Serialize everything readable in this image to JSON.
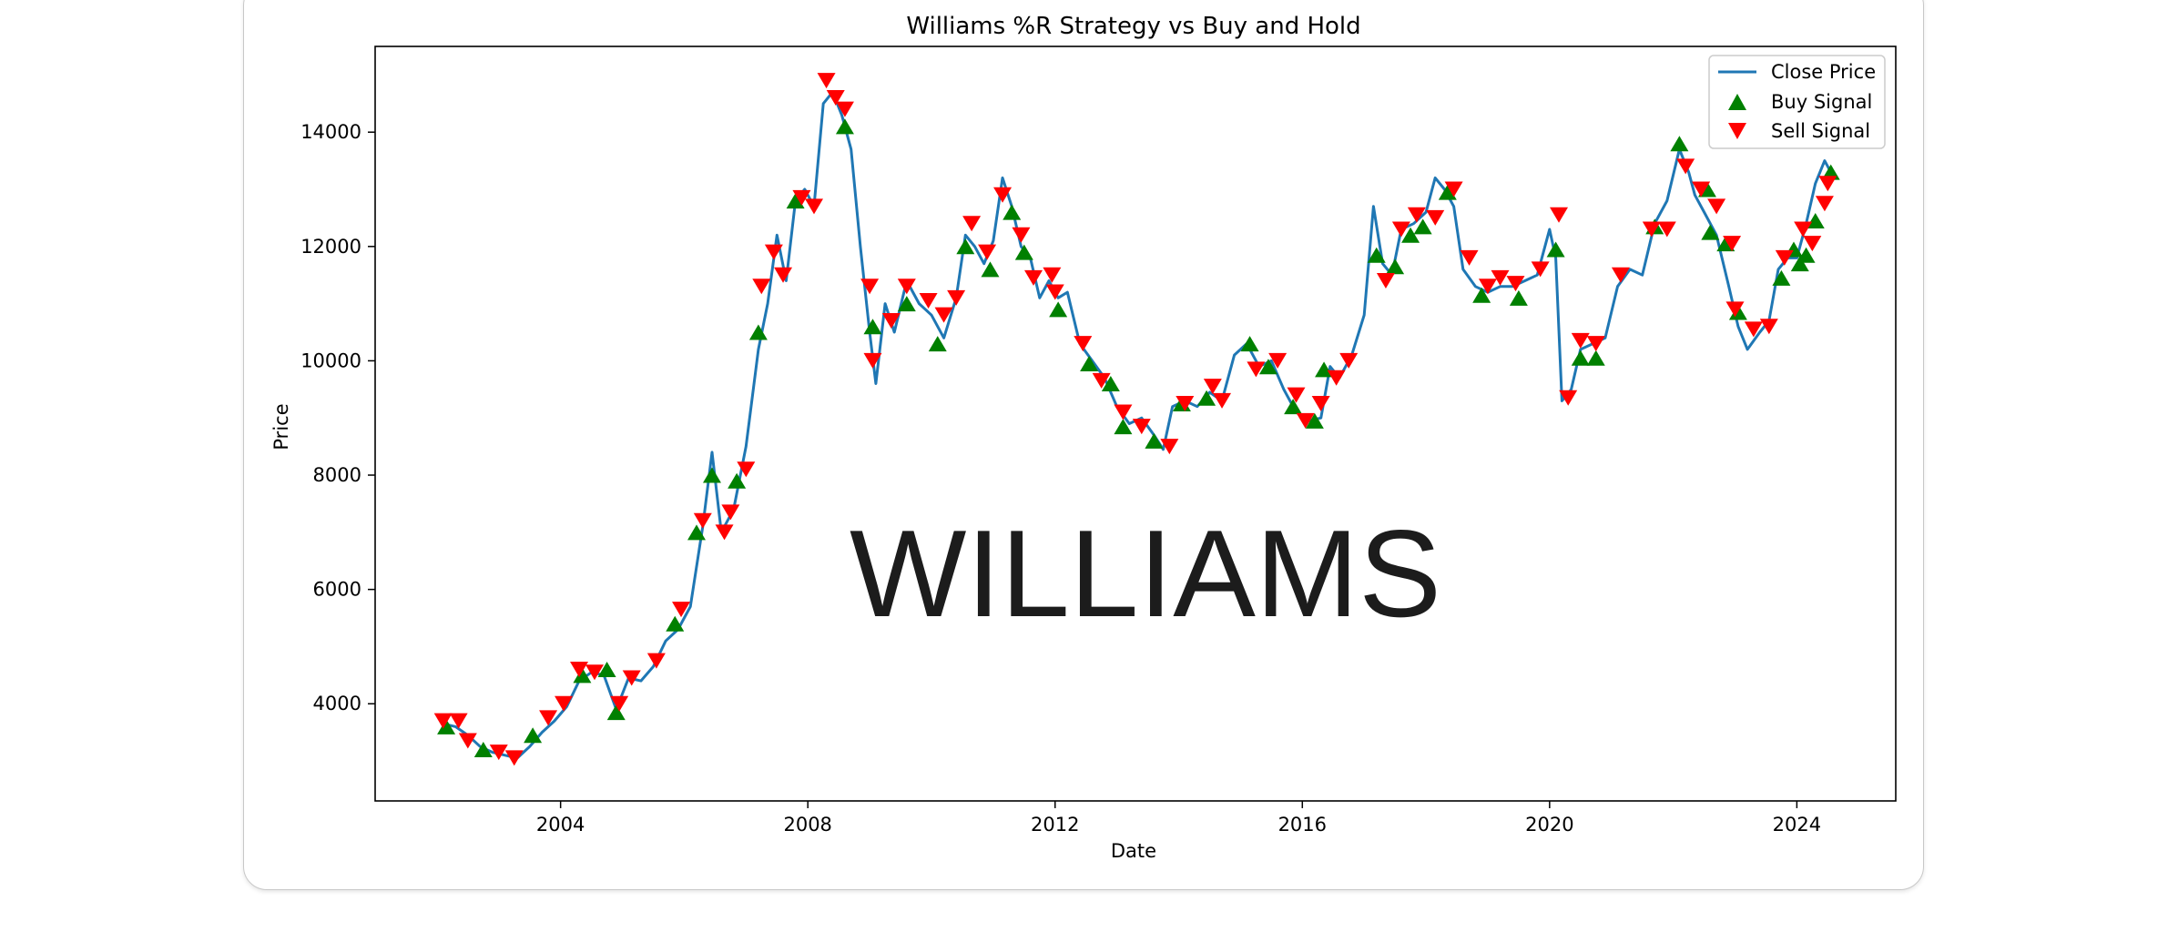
{
  "chart_data": {
    "type": "line",
    "title": "Williams %R Strategy vs Buy and Hold",
    "xlabel": "Date",
    "ylabel": "Price",
    "xlim": [
      2001.0,
      2025.6
    ],
    "ylim": [
      2300,
      15500
    ],
    "xticks": [
      2004,
      2008,
      2012,
      2016,
      2020,
      2024
    ],
    "yticks": [
      4000,
      6000,
      8000,
      10000,
      12000,
      14000
    ],
    "grid": false,
    "legend_position": "top-right",
    "watermark": "WILLIAMS",
    "series": [
      {
        "name": "Close Price",
        "color": "#1f77b4",
        "points": [
          [
            2002.1,
            3650
          ],
          [
            2002.3,
            3600
          ],
          [
            2002.5,
            3450
          ],
          [
            2002.7,
            3250
          ],
          [
            2002.9,
            3150
          ],
          [
            2003.1,
            3100
          ],
          [
            2003.3,
            3050
          ],
          [
            2003.5,
            3250
          ],
          [
            2003.7,
            3500
          ],
          [
            2003.9,
            3700
          ],
          [
            2004.1,
            3950
          ],
          [
            2004.3,
            4400
          ],
          [
            2004.5,
            4550
          ],
          [
            2004.7,
            4500
          ],
          [
            2004.9,
            3900
          ],
          [
            2005.1,
            4450
          ],
          [
            2005.3,
            4400
          ],
          [
            2005.5,
            4650
          ],
          [
            2005.7,
            5100
          ],
          [
            2005.9,
            5300
          ],
          [
            2006.1,
            5700
          ],
          [
            2006.3,
            7100
          ],
          [
            2006.45,
            8400
          ],
          [
            2006.6,
            7000
          ],
          [
            2006.8,
            7400
          ],
          [
            2007.0,
            8500
          ],
          [
            2007.2,
            10200
          ],
          [
            2007.35,
            11000
          ],
          [
            2007.5,
            12200
          ],
          [
            2007.65,
            11400
          ],
          [
            2007.8,
            12800
          ],
          [
            2007.95,
            13000
          ],
          [
            2008.1,
            12700
          ],
          [
            2008.25,
            14500
          ],
          [
            2008.4,
            14700
          ],
          [
            2008.55,
            14300
          ],
          [
            2008.7,
            13700
          ],
          [
            2008.85,
            12000
          ],
          [
            2009.0,
            10500
          ],
          [
            2009.1,
            9600
          ],
          [
            2009.25,
            11000
          ],
          [
            2009.4,
            10500
          ],
          [
            2009.6,
            11400
          ],
          [
            2009.8,
            11000
          ],
          [
            2010.0,
            10800
          ],
          [
            2010.2,
            10400
          ],
          [
            2010.4,
            11100
          ],
          [
            2010.55,
            12200
          ],
          [
            2010.7,
            12000
          ],
          [
            2010.85,
            11700
          ],
          [
            2011.0,
            12100
          ],
          [
            2011.15,
            13200
          ],
          [
            2011.3,
            12700
          ],
          [
            2011.45,
            12000
          ],
          [
            2011.6,
            11800
          ],
          [
            2011.75,
            11100
          ],
          [
            2011.9,
            11400
          ],
          [
            2012.05,
            11100
          ],
          [
            2012.2,
            11200
          ],
          [
            2012.4,
            10300
          ],
          [
            2012.6,
            10000
          ],
          [
            2012.8,
            9700
          ],
          [
            2013.0,
            9200
          ],
          [
            2013.2,
            8900
          ],
          [
            2013.4,
            9000
          ],
          [
            2013.6,
            8700
          ],
          [
            2013.75,
            8450
          ],
          [
            2013.9,
            9200
          ],
          [
            2014.1,
            9300
          ],
          [
            2014.3,
            9200
          ],
          [
            2014.5,
            9450
          ],
          [
            2014.7,
            9300
          ],
          [
            2014.9,
            10100
          ],
          [
            2015.1,
            10300
          ],
          [
            2015.3,
            9900
          ],
          [
            2015.5,
            10000
          ],
          [
            2015.7,
            9500
          ],
          [
            2015.9,
            9100
          ],
          [
            2016.1,
            8950
          ],
          [
            2016.3,
            9000
          ],
          [
            2016.45,
            9900
          ],
          [
            2016.6,
            9700
          ],
          [
            2016.8,
            10100
          ],
          [
            2017.0,
            10800
          ],
          [
            2017.15,
            12700
          ],
          [
            2017.3,
            11700
          ],
          [
            2017.45,
            11500
          ],
          [
            2017.6,
            12300
          ],
          [
            2017.8,
            12400
          ],
          [
            2018.0,
            12600
          ],
          [
            2018.15,
            13200
          ],
          [
            2018.3,
            13000
          ],
          [
            2018.45,
            12700
          ],
          [
            2018.6,
            11600
          ],
          [
            2018.8,
            11300
          ],
          [
            2019.0,
            11200
          ],
          [
            2019.2,
            11300
          ],
          [
            2019.4,
            11300
          ],
          [
            2019.6,
            11400
          ],
          [
            2019.8,
            11500
          ],
          [
            2020.0,
            12300
          ],
          [
            2020.1,
            11800
          ],
          [
            2020.2,
            9300
          ],
          [
            2020.35,
            9500
          ],
          [
            2020.5,
            10200
          ],
          [
            2020.7,
            10300
          ],
          [
            2020.9,
            10400
          ],
          [
            2021.1,
            11300
          ],
          [
            2021.3,
            11600
          ],
          [
            2021.5,
            11500
          ],
          [
            2021.7,
            12400
          ],
          [
            2021.9,
            12800
          ],
          [
            2022.1,
            13700
          ],
          [
            2022.25,
            13300
          ],
          [
            2022.35,
            12900
          ],
          [
            2022.5,
            12600
          ],
          [
            2022.7,
            12200
          ],
          [
            2022.9,
            11300
          ],
          [
            2023.05,
            10600
          ],
          [
            2023.2,
            10200
          ],
          [
            2023.4,
            10500
          ],
          [
            2023.55,
            10700
          ],
          [
            2023.7,
            11600
          ],
          [
            2023.85,
            11800
          ],
          [
            2024.0,
            11800
          ],
          [
            2024.15,
            12400
          ],
          [
            2024.3,
            13100
          ],
          [
            2024.45,
            13500
          ],
          [
            2024.55,
            13300
          ]
        ]
      },
      {
        "name": "Buy Signal",
        "color": "#008000",
        "marker": "triangle-up",
        "points": [
          [
            2002.15,
            3600
          ],
          [
            2002.75,
            3200
          ],
          [
            2003.55,
            3450
          ],
          [
            2004.35,
            4500
          ],
          [
            2004.75,
            4600
          ],
          [
            2004.9,
            3850
          ],
          [
            2005.85,
            5400
          ],
          [
            2006.2,
            7000
          ],
          [
            2006.45,
            8000
          ],
          [
            2006.85,
            7900
          ],
          [
            2007.2,
            10500
          ],
          [
            2007.8,
            12800
          ],
          [
            2008.6,
            14100
          ],
          [
            2009.05,
            10600
          ],
          [
            2009.6,
            11000
          ],
          [
            2010.1,
            10300
          ],
          [
            2010.55,
            12000
          ],
          [
            2010.95,
            11600
          ],
          [
            2011.3,
            12600
          ],
          [
            2011.5,
            11900
          ],
          [
            2012.05,
            10900
          ],
          [
            2012.55,
            9950
          ],
          [
            2012.9,
            9600
          ],
          [
            2013.1,
            8850
          ],
          [
            2013.6,
            8600
          ],
          [
            2014.05,
            9250
          ],
          [
            2014.45,
            9350
          ],
          [
            2015.15,
            10300
          ],
          [
            2015.45,
            9900
          ],
          [
            2015.85,
            9200
          ],
          [
            2016.2,
            8950
          ],
          [
            2016.35,
            9850
          ],
          [
            2017.2,
            11850
          ],
          [
            2017.5,
            11650
          ],
          [
            2017.75,
            12200
          ],
          [
            2017.95,
            12350
          ],
          [
            2018.35,
            12950
          ],
          [
            2018.9,
            11150
          ],
          [
            2019.5,
            11100
          ],
          [
            2020.1,
            11950
          ],
          [
            2020.5,
            10050
          ],
          [
            2020.75,
            10050
          ],
          [
            2021.7,
            12350
          ],
          [
            2022.1,
            13800
          ],
          [
            2022.55,
            13000
          ],
          [
            2022.6,
            12250
          ],
          [
            2022.85,
            12050
          ],
          [
            2023.05,
            10850
          ],
          [
            2023.75,
            11450
          ],
          [
            2023.95,
            11950
          ],
          [
            2024.05,
            11700
          ],
          [
            2024.15,
            11850
          ],
          [
            2024.3,
            12450
          ],
          [
            2024.55,
            13300
          ]
        ]
      },
      {
        "name": "Sell Signal",
        "color": "#ff0000",
        "marker": "triangle-down",
        "points": [
          [
            2002.1,
            3700
          ],
          [
            2002.35,
            3700
          ],
          [
            2002.5,
            3350
          ],
          [
            2003.0,
            3150
          ],
          [
            2003.25,
            3050
          ],
          [
            2003.8,
            3750
          ],
          [
            2004.05,
            4000
          ],
          [
            2004.3,
            4600
          ],
          [
            2004.55,
            4550
          ],
          [
            2004.95,
            4000
          ],
          [
            2005.15,
            4450
          ],
          [
            2005.55,
            4750
          ],
          [
            2005.95,
            5650
          ],
          [
            2006.3,
            7200
          ],
          [
            2006.65,
            7000
          ],
          [
            2006.75,
            7350
          ],
          [
            2007.0,
            8100
          ],
          [
            2007.25,
            11300
          ],
          [
            2007.45,
            11900
          ],
          [
            2007.6,
            11500
          ],
          [
            2007.9,
            12850
          ],
          [
            2008.1,
            12700
          ],
          [
            2008.3,
            14900
          ],
          [
            2008.45,
            14600
          ],
          [
            2008.6,
            14400
          ],
          [
            2009.0,
            11300
          ],
          [
            2009.05,
            10000
          ],
          [
            2009.35,
            10700
          ],
          [
            2009.6,
            11300
          ],
          [
            2009.95,
            11050
          ],
          [
            2010.2,
            10800
          ],
          [
            2010.4,
            11100
          ],
          [
            2010.65,
            12400
          ],
          [
            2010.9,
            11900
          ],
          [
            2011.15,
            12900
          ],
          [
            2011.45,
            12200
          ],
          [
            2011.65,
            11450
          ],
          [
            2011.95,
            11500
          ],
          [
            2012.0,
            11200
          ],
          [
            2012.45,
            10300
          ],
          [
            2012.75,
            9650
          ],
          [
            2013.1,
            9100
          ],
          [
            2013.4,
            8850
          ],
          [
            2013.85,
            8500
          ],
          [
            2014.1,
            9250
          ],
          [
            2014.55,
            9550
          ],
          [
            2014.7,
            9300
          ],
          [
            2015.25,
            9850
          ],
          [
            2015.6,
            10000
          ],
          [
            2015.9,
            9400
          ],
          [
            2016.05,
            8950
          ],
          [
            2016.3,
            9250
          ],
          [
            2016.55,
            9700
          ],
          [
            2016.75,
            10000
          ],
          [
            2017.35,
            11400
          ],
          [
            2017.6,
            12300
          ],
          [
            2017.85,
            12550
          ],
          [
            2018.15,
            12500
          ],
          [
            2018.45,
            13000
          ],
          [
            2018.7,
            11800
          ],
          [
            2019.0,
            11300
          ],
          [
            2019.2,
            11450
          ],
          [
            2019.45,
            11350
          ],
          [
            2019.85,
            11600
          ],
          [
            2020.15,
            12550
          ],
          [
            2020.3,
            9350
          ],
          [
            2020.5,
            10350
          ],
          [
            2020.75,
            10300
          ],
          [
            2021.15,
            11500
          ],
          [
            2021.65,
            12300
          ],
          [
            2021.9,
            12300
          ],
          [
            2022.2,
            13400
          ],
          [
            2022.45,
            13000
          ],
          [
            2022.7,
            12700
          ],
          [
            2022.95,
            12050
          ],
          [
            2023.0,
            10900
          ],
          [
            2023.3,
            10550
          ],
          [
            2023.55,
            10600
          ],
          [
            2023.8,
            11800
          ],
          [
            2024.1,
            12300
          ],
          [
            2024.25,
            12050
          ],
          [
            2024.45,
            12750
          ],
          [
            2024.5,
            13100
          ]
        ]
      }
    ]
  }
}
